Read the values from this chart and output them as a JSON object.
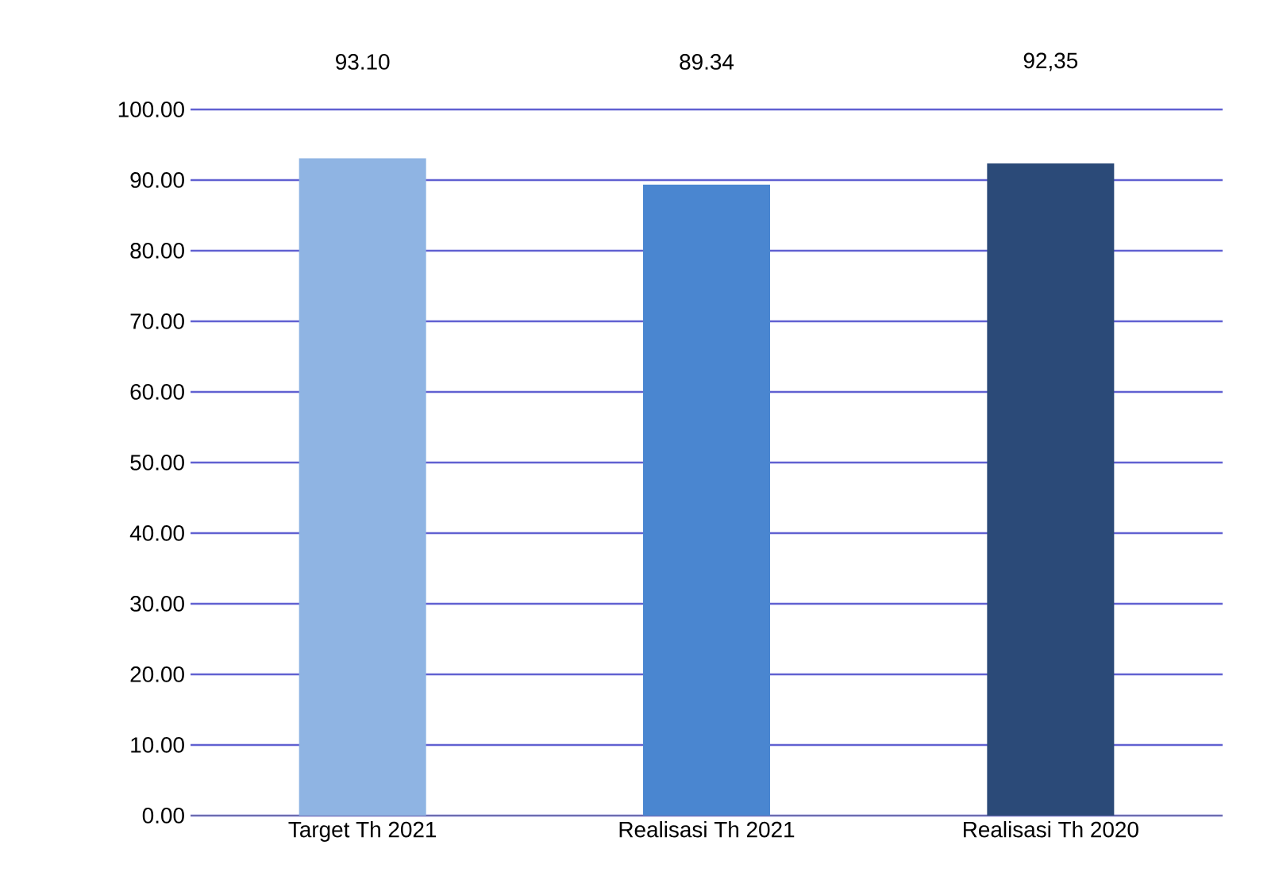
{
  "chart_data": {
    "type": "bar",
    "categories": [
      "Target Th 2021",
      "Realisasi Th 2021",
      "Realisasi Th 2020"
    ],
    "values": [
      93.1,
      89.34,
      92.35
    ],
    "colors": [
      "#8fb4e3",
      "#4a86d0",
      "#2b4a78"
    ],
    "value_labels": [
      "93.10",
      "89.34",
      "92,35"
    ],
    "ylim": [
      0,
      100
    ],
    "yticks": [
      {
        "value": 0,
        "label": "0.00"
      },
      {
        "value": 10,
        "label": "10.00"
      },
      {
        "value": 20,
        "label": "20.00"
      },
      {
        "value": 30,
        "label": "30.00"
      },
      {
        "value": 40,
        "label": "40.00"
      },
      {
        "value": 50,
        "label": "50.00"
      },
      {
        "value": 60,
        "label": "60.00"
      },
      {
        "value": 70,
        "label": "70.00"
      },
      {
        "value": 80,
        "label": "80.00"
      },
      {
        "value": 90,
        "label": "90.00"
      },
      {
        "value": 100,
        "label": "100.00"
      }
    ],
    "grid": "y"
  }
}
